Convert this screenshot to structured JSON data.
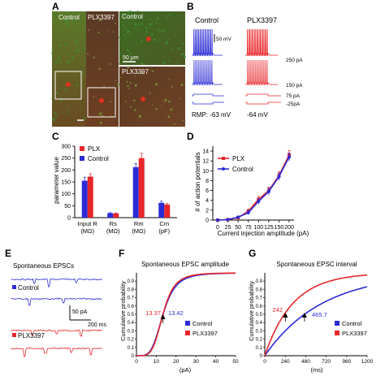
{
  "panel_letters": {
    "A": "A",
    "B": "B",
    "C": "C",
    "D": "D",
    "E": "E",
    "F": "F",
    "G": "G"
  },
  "colors": {
    "control": "#2b2bd6",
    "plx": "#e8262a",
    "micro_green": "#3f8f2f",
    "micro_red": "#c43a22"
  },
  "panelA": {
    "control_label": "Control",
    "plx_label": "PLX3397",
    "zoom_control_label": "Control",
    "zoom_plx_label": "PLX3397",
    "scale_label": "50 μm"
  },
  "panelB": {
    "control_title": "Control",
    "plx_title": "PLX3397",
    "scale_label": "50 mV",
    "currents": [
      "250 pA",
      "150 pA",
      "75 pA",
      "-25pA"
    ],
    "rmp_control": "RMP: -63 mV",
    "rmp_plx": "-64 mV"
  },
  "panelE": {
    "title": "Spontaneous EPSCs",
    "control_label": "Control",
    "plx_label": "PLX3397",
    "scale_y": "50 pA",
    "scale_x": "200 ms"
  },
  "chart_data": [
    {
      "id": "C",
      "type": "bar",
      "ylabel": "parameter value",
      "yticks": [
        0,
        50,
        100,
        150,
        200,
        250,
        300
      ],
      "ylim": [
        0,
        300
      ],
      "categories": [
        {
          "line1": "Input R",
          "line2": "(MΩ)"
        },
        {
          "line1": "Rs",
          "line2": "(MΩ)"
        },
        {
          "line1": "Rm",
          "line2": "(MΩ)"
        },
        {
          "line1": "Cm",
          "line2": "(pF)"
        }
      ],
      "series": [
        {
          "name": "PLX",
          "values": [
            172,
            18,
            250,
            55
          ],
          "errors": [
            12,
            2,
            20,
            4
          ]
        },
        {
          "name": "Control",
          "values": [
            155,
            19,
            212,
            62
          ],
          "errors": [
            15,
            2,
            15,
            7
          ]
        }
      ],
      "legend_position": "top-left"
    },
    {
      "id": "D",
      "type": "line",
      "ylabel": "# of action potentials",
      "xlabel": "Current injection amplitude (pA)",
      "x": [
        0,
        25,
        50,
        75,
        100,
        125,
        150,
        200
      ],
      "xticks": [
        "0",
        "25",
        "50",
        "75",
        "100",
        "125",
        "150",
        "200"
      ],
      "yticks": [
        0,
        2,
        4,
        6,
        8,
        10,
        12,
        14
      ],
      "ylim": [
        0,
        15
      ],
      "series": [
        {
          "name": "PLX",
          "values": [
            0,
            0.1,
            0.5,
            1.8,
            4.2,
            6.0,
            9.0,
            13.2
          ],
          "errors": [
            0,
            0.1,
            0.2,
            0.4,
            0.6,
            0.7,
            0.8,
            0.9
          ]
        },
        {
          "name": "Control",
          "values": [
            0,
            0.1,
            0.6,
            1.5,
            3.8,
            5.8,
            8.8,
            12.8
          ],
          "errors": [
            0,
            0.1,
            0.2,
            0.4,
            0.6,
            0.7,
            0.7,
            0.8
          ]
        }
      ],
      "legend_position": "top-left"
    },
    {
      "id": "F",
      "type": "line",
      "title": "Spontaneous EPSC amplitude",
      "ylabel": "Cumulative probability",
      "xlabel": "(pA)",
      "xticks": [
        0,
        10,
        20,
        30,
        40,
        50
      ],
      "yticks": [
        0,
        0.1,
        0.2,
        0.3,
        0.4,
        0.5,
        0.6,
        0.7,
        0.8,
        0.9
      ],
      "xlim": [
        0,
        50
      ],
      "ylim": [
        0,
        1
      ],
      "series": [
        {
          "name": "Control",
          "median": 13.42
        },
        {
          "name": "PLX3397",
          "median": 13.37
        }
      ],
      "annotations": [
        "13.37",
        "13.42"
      ]
    },
    {
      "id": "G",
      "type": "line",
      "title": "Spontaneous EPSC interval",
      "ylabel": "Cumulative probability",
      "xlabel": "(ms)",
      "xticks": [
        0,
        240,
        480,
        720,
        960,
        1200
      ],
      "yticks": [
        0,
        0.1,
        0.2,
        0.3,
        0.4,
        0.5,
        0.6,
        0.7,
        0.8,
        0.9
      ],
      "xlim": [
        0,
        1200
      ],
      "ylim": [
        0,
        1
      ],
      "series": [
        {
          "name": "Control",
          "median": 465.7
        },
        {
          "name": "PLX3397",
          "median": 242
        }
      ],
      "annotations": [
        "242",
        "465.7"
      ]
    }
  ]
}
